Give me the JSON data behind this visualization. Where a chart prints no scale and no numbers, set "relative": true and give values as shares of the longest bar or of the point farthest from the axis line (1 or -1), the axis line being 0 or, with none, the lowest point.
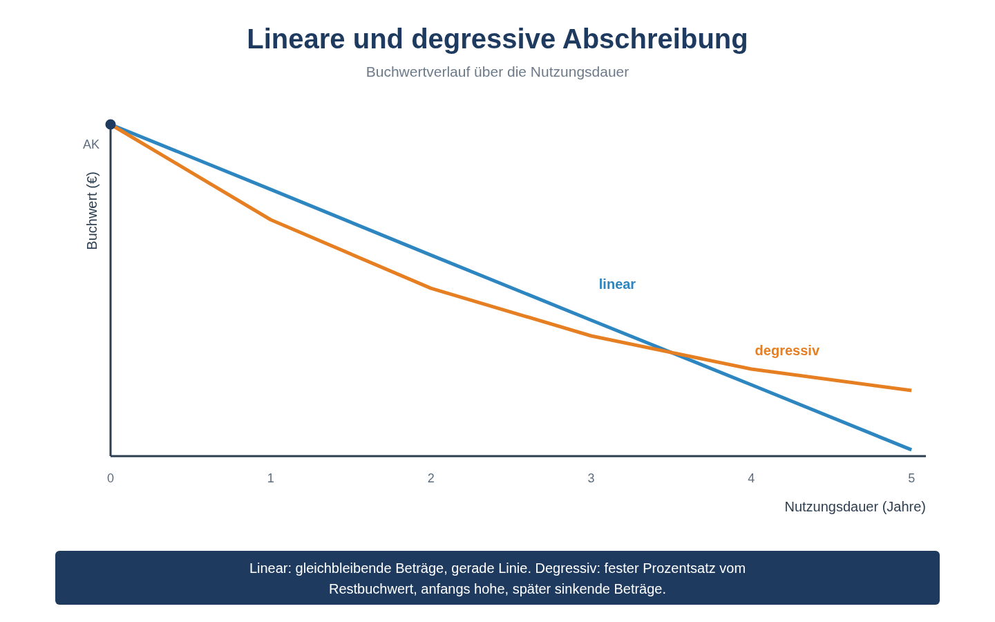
{
  "chart_data": {
    "type": "line",
    "title": "Lineare und degressive Abschreibung",
    "subtitle": "Buchwertverlauf über die Nutzungsdauer",
    "xlabel": "Nutzungsdauer (Jahre)",
    "ylabel": "Buchwert (€)",
    "relative": true,
    "x": [
      0,
      1,
      2,
      3,
      4,
      5
    ],
    "xlim": [
      0,
      5.09
    ],
    "xticks": [
      0,
      1,
      2,
      3,
      4,
      5
    ],
    "grid": false,
    "series": [
      {
        "name": "linear",
        "color": "#2e86c1",
        "values": [
          1,
          0.804,
          0.606,
          0.41,
          0.215,
          0.019
        ]
      },
      {
        "name": "degressiv",
        "color": "#e67e22",
        "values": [
          1,
          0.7125,
          0.506,
          0.3625,
          0.2625,
          0.198
        ]
      },
      {
        "type": "scatter",
        "color": "#1e3a5f",
        "x": [
          0
        ],
        "values": [
          1
        ],
        "marker": "circle"
      }
    ],
    "annotations": [
      {
        "text": "AK",
        "x": 0,
        "y": 1
      },
      "Linear: gleichbleibende Beträge, gerade Linie. Degressiv: fester Prozentsatz vom Restbuchwert, anfangs hohe, später sinkende Beträge."
    ]
  }
}
